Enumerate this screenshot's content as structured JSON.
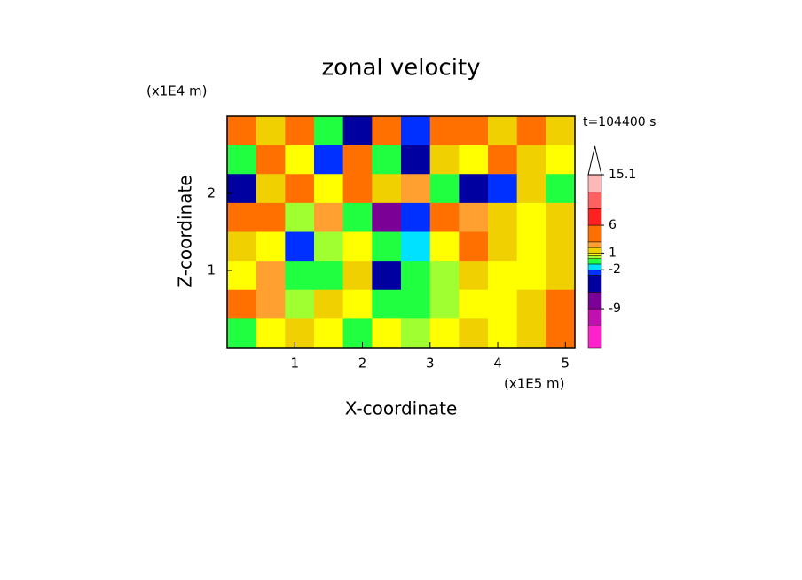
{
  "chart_data": {
    "type": "contour",
    "title": "zonal velocity",
    "x_label": "X-coordinate",
    "y_label": "Z-coordinate",
    "x_unit": "(x1E5 m)",
    "y_unit": "(x1E4 m)",
    "time_label": "t=104400 s",
    "xlim": [
      0,
      5.14
    ],
    "ylim": [
      0,
      3
    ],
    "xticks": [
      1,
      2,
      3,
      4,
      5
    ],
    "yticks": [
      1,
      2
    ],
    "z": [
      [
        4,
        1,
        3,
        -1,
        -6,
        3,
        -3,
        4,
        5,
        1,
        4,
        1
      ],
      [
        -1,
        3,
        0.5,
        -3,
        4,
        -1,
        -6,
        1,
        0.5,
        3,
        1,
        0.5
      ],
      [
        -6,
        1,
        4,
        0.5,
        5,
        1,
        2,
        -1,
        -6,
        -3,
        1,
        -1
      ],
      [
        3,
        5,
        0,
        2,
        -1,
        -8,
        -3,
        4,
        2,
        1,
        0.5,
        1
      ],
      [
        1,
        0.5,
        -3,
        0,
        0.5,
        -1,
        -2,
        0.5,
        3,
        1,
        0.5,
        1
      ],
      [
        0.5,
        2,
        -1,
        -0.5,
        1,
        -6,
        -1,
        0,
        1,
        0.5,
        0.5,
        1
      ],
      [
        4,
        2,
        0,
        1,
        0.5,
        -1,
        -0.5,
        0,
        0.5,
        0.5,
        1,
        3
      ],
      [
        -1,
        0.5,
        1,
        0.5,
        -0.5,
        0.5,
        0,
        0.5,
        1,
        0.5,
        1,
        3
      ]
    ],
    "colorbar": {
      "levels": [
        -16,
        -12,
        -9,
        -6,
        -3,
        -2,
        -1,
        0,
        0.5,
        1,
        2,
        3,
        6,
        9,
        12,
        15.1
      ],
      "colors": [
        "#ff22cc",
        "#c010b0",
        "#7a0096",
        "#0000a0",
        "#0030ff",
        "#00e0ff",
        "#20ff40",
        "#a0ff30",
        "#ffff00",
        "#f0d000",
        "#ffa030",
        "#ff7000",
        "#ff2020",
        "#ff6060",
        "#ffb8b8"
      ],
      "over_color": "#ffffff",
      "ticks": [
        -9,
        -2,
        1,
        6,
        15.1
      ]
    }
  }
}
